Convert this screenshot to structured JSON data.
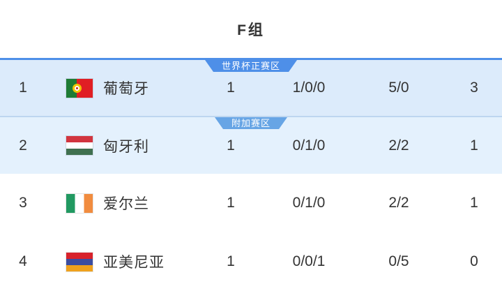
{
  "title": "F组",
  "colors": {
    "zone-primary": "#4e8fe8",
    "zone-secondary": "#67a5e5",
    "row1-bg": "#dcebfb",
    "row2-bg": "#e4f1fd",
    "row2-line": "#bdd6f0"
  },
  "zones": {
    "worldcup_label": "世界杯正赛区",
    "playoff_label": "附加赛区"
  },
  "rows": [
    {
      "rank": "1",
      "team": "葡萄牙",
      "played": "1",
      "record": "1/0/0",
      "goals": "5/0",
      "points": "3"
    },
    {
      "rank": "2",
      "team": "匈牙利",
      "played": "1",
      "record": "0/1/0",
      "goals": "2/2",
      "points": "1"
    },
    {
      "rank": "3",
      "team": "爱尔兰",
      "played": "1",
      "record": "0/1/0",
      "goals": "2/2",
      "points": "1"
    },
    {
      "rank": "4",
      "team": "亚美尼亚",
      "played": "1",
      "record": "0/0/1",
      "goals": "0/5",
      "points": "0"
    }
  ]
}
